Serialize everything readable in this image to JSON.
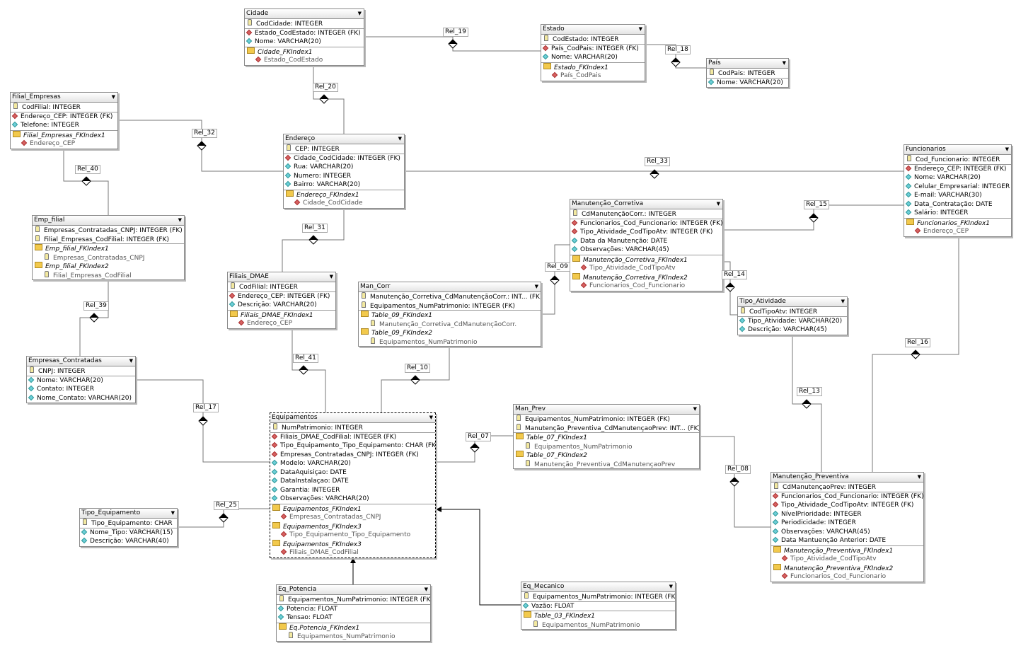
{
  "tables": [
    {
      "name": "Cidade",
      "cols": [
        [
          "pk",
          "CodCidade: INTEGER"
        ],
        [
          "fk",
          "Estado_CodEstado: INTEGER (FK)"
        ],
        [
          "at",
          "Nome: VARCHAR(20)"
        ],
        [
          "ix",
          "Cidade_FKIndex1"
        ],
        [
          "icfk",
          "Estado_CodEstado"
        ]
      ]
    },
    {
      "name": "Estado",
      "cols": [
        [
          "pk",
          "CodEstado: INTEGER"
        ],
        [
          "fk",
          "País_CodPais: INTEGER (FK)"
        ],
        [
          "at",
          "Nome: VARCHAR(20)"
        ],
        [
          "ix",
          "Estado_FKIndex1"
        ],
        [
          "icfk",
          "País_CodPais"
        ]
      ]
    },
    {
      "name": "País",
      "cols": [
        [
          "pk",
          "CodPais: INTEGER"
        ],
        [
          "at",
          "Nome: VARCHAR(20)"
        ]
      ]
    },
    {
      "name": "Filial_Empresas",
      "cols": [
        [
          "pk",
          "CodFilial: INTEGER"
        ],
        [
          "fk",
          "Endereço_CEP: INTEGER (FK)"
        ],
        [
          "at",
          "Telefone: INTEGER"
        ],
        [
          "ix",
          "Filial_Empresas_FKIndex1"
        ],
        [
          "icfk",
          "Endereço_CEP"
        ]
      ]
    },
    {
      "name": "Endereço",
      "cols": [
        [
          "pk",
          "CEP: INTEGER"
        ],
        [
          "fk",
          "Cidade_CodCidade: INTEGER (FK)"
        ],
        [
          "at",
          "Rua: VARCHAR(20)"
        ],
        [
          "at",
          "Numero: INTEGER"
        ],
        [
          "at",
          "Bairro: VARCHAR(20)"
        ],
        [
          "ix",
          "Endereço_FKIndex1"
        ],
        [
          "icfk",
          "Cidade_CodCidade"
        ]
      ]
    },
    {
      "name": "Funcionarios",
      "cols": [
        [
          "pk",
          "Cod_Funcionario: INTEGER"
        ],
        [
          "fk",
          "Endereço_CEP: INTEGER (FK)"
        ],
        [
          "at",
          "Nome: VARCHAR(20)"
        ],
        [
          "at",
          "Celular_Empresarial: INTEGER"
        ],
        [
          "at",
          "E-mail: VARCHAR(30)"
        ],
        [
          "at",
          "Data_Contratação: DATE"
        ],
        [
          "at",
          "Salário: INTEGER"
        ],
        [
          "ix",
          "Funcionarios_FKIndex1"
        ],
        [
          "icfk",
          "Endereço_CEP"
        ]
      ]
    },
    {
      "name": "Emp_filial",
      "cols": [
        [
          "pk",
          "Empresas_Contratadas_CNPJ: INTEGER (FK)"
        ],
        [
          "pk",
          "Filial_Empresas_CodFilial: INTEGER (FK)"
        ],
        [
          "ix",
          "Emp_filial_FKIndex1"
        ],
        [
          "icpk",
          "Empresas_Contratadas_CNPJ"
        ],
        [
          "ix",
          "Emp_filial_FKIndex2"
        ],
        [
          "icpk",
          "Filial_Empresas_CodFilial"
        ]
      ]
    },
    {
      "name": "Manutenção_Corretiva",
      "cols": [
        [
          "pk",
          "CdManutençãoCorr.: INTEGER"
        ],
        [
          "fk",
          "Funcionarios_Cod_Funcionario: INTEGER (FK)"
        ],
        [
          "fk",
          "Tipo_Atividade_CodTipoAtv: INTEGER (FK)"
        ],
        [
          "at",
          "Data da Manutenção: DATE"
        ],
        [
          "at",
          "Observações: VARCHAR(45)"
        ],
        [
          "ix",
          "Manutenção_Corretiva_FKIndex1"
        ],
        [
          "icfk",
          "Tipo_Atividade_CodTipoAtv"
        ],
        [
          "ix",
          "Manutenção_Corretiva_FKIndex2"
        ],
        [
          "icfk",
          "Funcionarios_Cod_Funcionario"
        ]
      ]
    },
    {
      "name": "Filiais_DMAE",
      "cols": [
        [
          "pk",
          "CodFilial: INTEGER"
        ],
        [
          "fk",
          "Endereço_CEP: INTEGER (FK)"
        ],
        [
          "at",
          "Descrição: VARCHAR(20)"
        ],
        [
          "ix",
          "Filiais_DMAE_FKIndex1"
        ],
        [
          "icfk",
          "Endereço_CEP"
        ]
      ]
    },
    {
      "name": "Man_Corr",
      "cols": [
        [
          "pk",
          "Manutenção_Corretiva_CdManutençãoCorr.: INT... (FK)"
        ],
        [
          "pk",
          "Equipamentos_NumPatrimonio: INTEGER (FK)"
        ],
        [
          "ix",
          "Table_09_FKIndex1"
        ],
        [
          "icpk",
          "Manutenção_Corretiva_CdManutençãoCorr."
        ],
        [
          "ix",
          "Table_09_FKIndex2"
        ],
        [
          "icpk",
          "Equipamentos_NumPatrimonio"
        ]
      ]
    },
    {
      "name": "Tipo_Atividade",
      "cols": [
        [
          "pk",
          "CodTipoAtv: INTEGER"
        ],
        [
          "at",
          "Tipo_Atividade: VARCHAR(20)"
        ],
        [
          "at",
          "Descrição: VARCHAR(45)"
        ]
      ]
    },
    {
      "name": "Empresas_Contratadas",
      "cols": [
        [
          "pk",
          "CNPJ: INTEGER"
        ],
        [
          "at",
          "Nome: VARCHAR(20)"
        ],
        [
          "at",
          "Contato: INTEGER"
        ],
        [
          "at",
          "Nome_Contato: VARCHAR(20)"
        ]
      ]
    },
    {
      "name": "Equipamentos",
      "selected": true,
      "cols": [
        [
          "pk",
          "NumPatrimonio: INTEGER"
        ],
        [
          "fk",
          "Filiais_DMAE_CodFilial: INTEGER (FK)"
        ],
        [
          "fk",
          "Tipo_Equipamento_Tipo_Equipamento: CHAR (FK)"
        ],
        [
          "fk",
          "Empresas_Contratadas_CNPJ: INTEGER (FK)"
        ],
        [
          "at",
          "Modelo: VARCHAR(20)"
        ],
        [
          "at",
          "DataAquisiçao: DATE"
        ],
        [
          "at",
          "DataInstalaçao: DATE"
        ],
        [
          "at",
          "Garantia: INTEGER"
        ],
        [
          "at",
          "Observações: VARCHAR(20)"
        ],
        [
          "ix",
          "Equipamentos_FKIndex1"
        ],
        [
          "icfk",
          "Empresas_Contratadas_CNPJ"
        ],
        [
          "ix",
          "Equipamentos_FKIndex3"
        ],
        [
          "icfk",
          "Tipo_Equipamento_Tipo_Equipamento"
        ],
        [
          "ix",
          "Equipamentos_FKIndex3"
        ],
        [
          "icfk",
          "Filiais_DMAE_CodFilial"
        ]
      ]
    },
    {
      "name": "Man_Prev",
      "cols": [
        [
          "pk",
          "Equipamentos_NumPatrimonio: INTEGER (FK)"
        ],
        [
          "pk",
          "Manutenção_Preventiva_CdManutençaoPrev: INT... (FK)"
        ],
        [
          "ix",
          "Table_07_FKIndex1"
        ],
        [
          "icpk",
          "Equipamentos_NumPatrimonio"
        ],
        [
          "ix",
          "Table_07_FKIndex2"
        ],
        [
          "icpk",
          "Manutenção_Preventiva_CdManutençaoPrev"
        ]
      ]
    },
    {
      "name": "Manutenção_Preventiva",
      "cols": [
        [
          "pk",
          "CdManutençaoPrev: INTEGER"
        ],
        [
          "fk",
          "Funcionarios_Cod_Funcionario: INTEGER (FK)"
        ],
        [
          "fk",
          "Tipo_Atividade_CodTipoAtv: INTEGER (FK)"
        ],
        [
          "at",
          "NívelPrioridade: INTEGER"
        ],
        [
          "at",
          "Periodicidade: INTEGER"
        ],
        [
          "at",
          "Observações: VARCHAR(45)"
        ],
        [
          "at",
          "Data Mantuenção Anterior: DATE"
        ],
        [
          "ix",
          "Manutenção_Preventiva_FKIndex1"
        ],
        [
          "icfk",
          "Tipo_Atividade_CodTipoAtv"
        ],
        [
          "ix",
          "Manutenção_Preventiva_FKIndex2"
        ],
        [
          "icfk",
          "Funcionarios_Cod_Funcionario"
        ]
      ]
    },
    {
      "name": "Tipo_Equipamento",
      "cols": [
        [
          "pk",
          "Tipo_Equipamento: CHAR"
        ],
        [
          "at",
          "Nome_Tipo: VARCHAR(15)"
        ],
        [
          "at",
          "Descrição: VARCHAR(40)"
        ]
      ]
    },
    {
      "name": "Eq_Potencia",
      "cols": [
        [
          "pk",
          "Equipamentos_NumPatrimonio: INTEGER (FK)"
        ],
        [
          "at",
          "Potencia: FLOAT"
        ],
        [
          "at",
          "Tensao: FLOAT"
        ],
        [
          "ix",
          "Eq.Potencia_FKIndex1"
        ],
        [
          "icpk",
          "Equipamentos_NumPatrimonio"
        ]
      ]
    },
    {
      "name": "Eq_Mecanico",
      "cols": [
        [
          "pk",
          "Equipamentos_NumPatrimonio: INTEGER (FK)"
        ],
        [
          "at",
          "Vazão: FLOAT"
        ],
        [
          "ix",
          "Table_03_FKIndex1"
        ],
        [
          "icpk",
          "Equipamentos_NumPatrimonio"
        ]
      ]
    }
  ],
  "relations": [
    "Rel_19",
    "Rel_18",
    "Rel_20",
    "Rel_32",
    "Rel_40",
    "Rel_33",
    "Rel_15",
    "Rel_31",
    "Rel_09",
    "Rel_14",
    "Rel_39",
    "Rel_41",
    "Rel_10",
    "Rel_17",
    "Rel_07",
    "Rel_08",
    "Rel_13",
    "Rel_16",
    "Rel_25"
  ]
}
